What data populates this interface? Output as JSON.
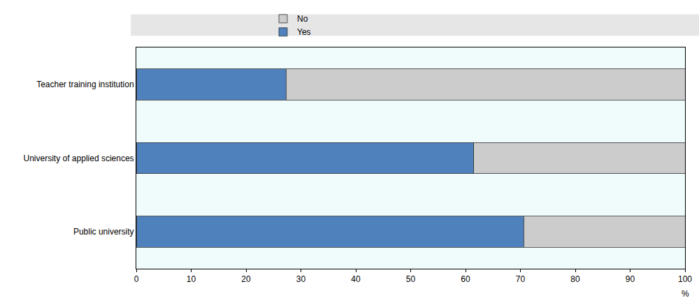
{
  "chart_data": {
    "type": "bar",
    "orientation": "horizontal",
    "stacked": true,
    "categories": [
      "Teacher training institution",
      "University of applied sciences",
      "Public university"
    ],
    "series": [
      {
        "name": "Yes",
        "color": "#4f81bd",
        "values": [
          27.3,
          61.5,
          70.6
        ]
      },
      {
        "name": "No",
        "color": "#cccccc",
        "values": [
          72.7,
          38.5,
          29.4
        ]
      }
    ],
    "xlabel": "%",
    "xlim": [
      0,
      100
    ],
    "xticks": [
      0,
      10,
      20,
      30,
      40,
      50,
      60,
      70,
      80,
      90,
      100
    ],
    "grid": false,
    "legend": "top"
  }
}
